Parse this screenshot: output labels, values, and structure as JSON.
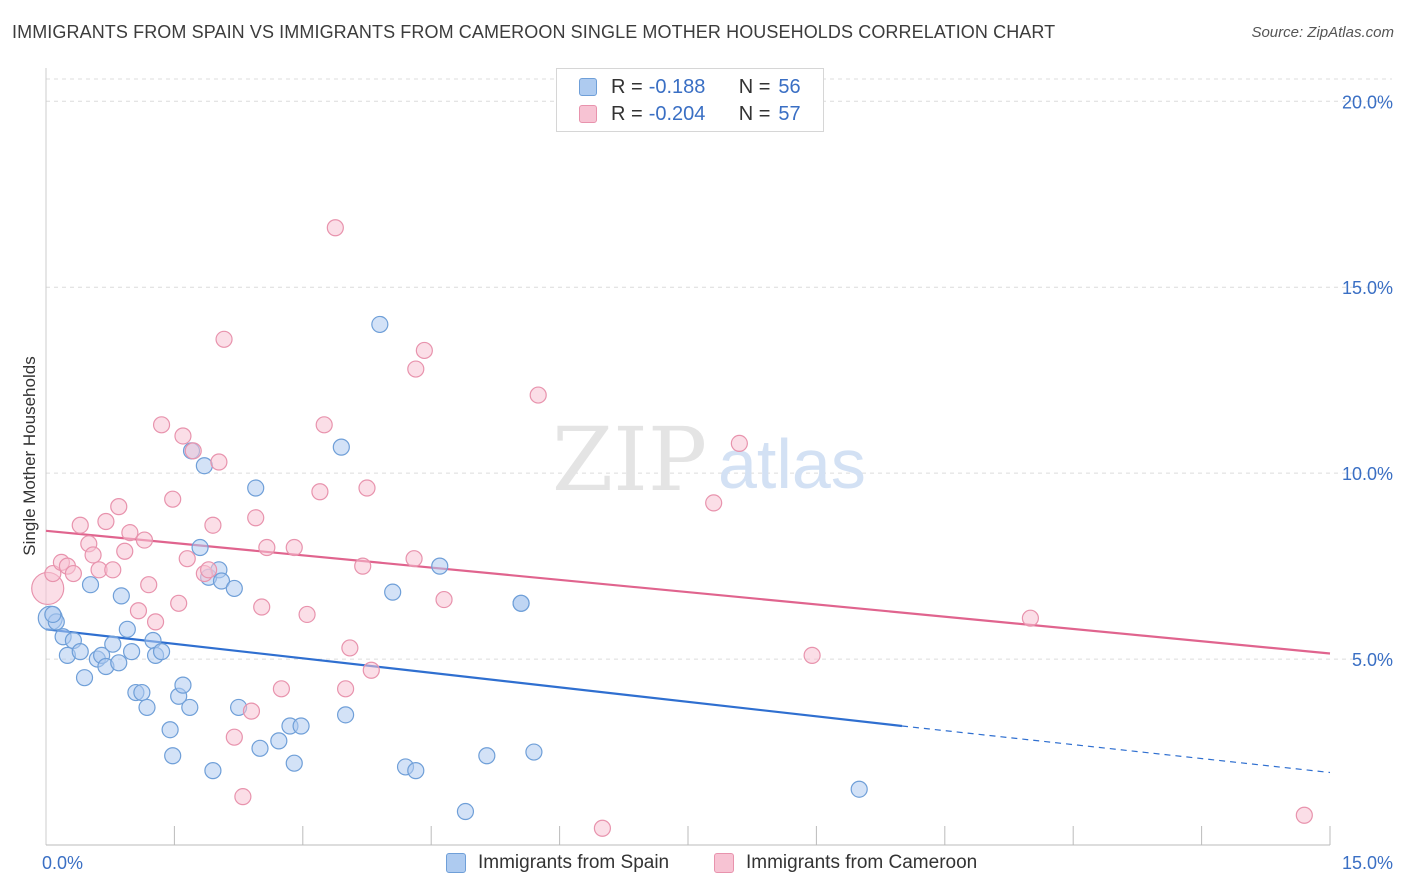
{
  "title": "IMMIGRANTS FROM SPAIN VS IMMIGRANTS FROM CAMEROON SINGLE MOTHER HOUSEHOLDS CORRELATION CHART",
  "source": "Source: ZipAtlas.com",
  "legend": {
    "r_label": "R =",
    "n_label": "N =",
    "rows": [
      {
        "r": "-0.188",
        "n": "56",
        "color": "#aecbf0",
        "border": "#6f9fd8"
      },
      {
        "r": "-0.204",
        "n": "57",
        "color": "#f7c3d3",
        "border": "#e893ad"
      }
    ]
  },
  "chart_data": {
    "type": "scatter",
    "ylabel": "Single Mother Households",
    "x_tick_labels": [
      "0.0%",
      "15.0%"
    ],
    "y_tick_labels": [
      "5.0%",
      "10.0%",
      "15.0%",
      "20.0%"
    ],
    "xlim": [
      0,
      15
    ],
    "ylim": [
      0,
      20.6
    ],
    "grid": true,
    "watermark": {
      "part1": "ZIP",
      "part2": "atlas"
    },
    "series": [
      {
        "name": "Immigrants from Spain",
        "color": "#aecbf0",
        "stroke": "#6f9fd8",
        "line_color": "#2f6fd0",
        "trend": {
          "x0": 0.0,
          "y0": 5.8,
          "x1": 10.0,
          "y1": 3.2,
          "x_dash_end": 15.0,
          "y_dash_end": 1.95
        },
        "points": [
          [
            0.05,
            6.1
          ],
          [
            0.12,
            6.0
          ],
          [
            0.2,
            5.6
          ],
          [
            0.25,
            5.1
          ],
          [
            0.32,
            5.5
          ],
          [
            0.4,
            5.2
          ],
          [
            0.45,
            4.5
          ],
          [
            0.52,
            7.0
          ],
          [
            0.6,
            5.0
          ],
          [
            0.65,
            5.1
          ],
          [
            0.7,
            4.8
          ],
          [
            0.78,
            5.4
          ],
          [
            0.85,
            4.9
          ],
          [
            0.88,
            6.7
          ],
          [
            0.95,
            5.8
          ],
          [
            1.0,
            5.2
          ],
          [
            1.05,
            4.1
          ],
          [
            1.12,
            4.1
          ],
          [
            1.18,
            3.7
          ],
          [
            1.25,
            5.5
          ],
          [
            1.28,
            5.1
          ],
          [
            1.35,
            5.2
          ],
          [
            1.45,
            3.1
          ],
          [
            1.48,
            2.4
          ],
          [
            1.55,
            4.0
          ],
          [
            1.6,
            4.3
          ],
          [
            1.68,
            3.7
          ],
          [
            1.7,
            10.6
          ],
          [
            1.8,
            8.0
          ],
          [
            1.85,
            10.2
          ],
          [
            1.9,
            7.2
          ],
          [
            1.95,
            2.0
          ],
          [
            2.02,
            7.4
          ],
          [
            2.05,
            7.1
          ],
          [
            2.2,
            6.9
          ],
          [
            2.25,
            3.7
          ],
          [
            2.45,
            9.6
          ],
          [
            2.5,
            2.6
          ],
          [
            2.72,
            2.8
          ],
          [
            2.85,
            3.2
          ],
          [
            2.9,
            2.2
          ],
          [
            2.98,
            3.2
          ],
          [
            3.45,
            10.7
          ],
          [
            3.5,
            3.5
          ],
          [
            3.9,
            14.0
          ],
          [
            4.05,
            6.8
          ],
          [
            4.2,
            2.1
          ],
          [
            4.32,
            2.0
          ],
          [
            4.6,
            7.5
          ],
          [
            4.9,
            0.9
          ],
          [
            5.15,
            2.4
          ],
          [
            5.55,
            6.5
          ],
          [
            5.55,
            6.5
          ],
          [
            5.7,
            2.5
          ],
          [
            9.5,
            1.5
          ],
          [
            0.08,
            6.2
          ]
        ]
      },
      {
        "name": "Immigrants from Cameroon",
        "color": "#f7c3d3",
        "stroke": "#e893ad",
        "line_color": "#e0648e",
        "trend": {
          "x0": 0.0,
          "y0": 8.45,
          "x1": 15.0,
          "y1": 5.15
        },
        "points": [
          [
            0.02,
            6.9
          ],
          [
            0.08,
            7.3
          ],
          [
            0.18,
            7.6
          ],
          [
            0.25,
            7.5
          ],
          [
            0.32,
            7.3
          ],
          [
            0.4,
            8.6
          ],
          [
            0.5,
            8.1
          ],
          [
            0.55,
            7.8
          ],
          [
            0.62,
            7.4
          ],
          [
            0.7,
            8.7
          ],
          [
            0.78,
            7.4
          ],
          [
            0.85,
            9.1
          ],
          [
            0.92,
            7.9
          ],
          [
            0.98,
            8.4
          ],
          [
            1.08,
            6.3
          ],
          [
            1.15,
            8.2
          ],
          [
            1.2,
            7.0
          ],
          [
            1.28,
            6.0
          ],
          [
            1.35,
            11.3
          ],
          [
            1.48,
            9.3
          ],
          [
            1.55,
            6.5
          ],
          [
            1.6,
            11.0
          ],
          [
            1.65,
            7.7
          ],
          [
            1.72,
            10.6
          ],
          [
            1.85,
            7.3
          ],
          [
            1.9,
            7.4
          ],
          [
            1.95,
            8.6
          ],
          [
            2.02,
            10.3
          ],
          [
            2.08,
            13.6
          ],
          [
            2.2,
            2.9
          ],
          [
            2.3,
            1.3
          ],
          [
            2.4,
            3.6
          ],
          [
            2.45,
            8.8
          ],
          [
            2.52,
            6.4
          ],
          [
            2.58,
            8.0
          ],
          [
            2.75,
            4.2
          ],
          [
            2.9,
            8.0
          ],
          [
            3.05,
            6.2
          ],
          [
            3.2,
            9.5
          ],
          [
            3.25,
            11.3
          ],
          [
            3.38,
            16.6
          ],
          [
            3.5,
            4.2
          ],
          [
            3.55,
            5.3
          ],
          [
            3.7,
            7.5
          ],
          [
            3.75,
            9.6
          ],
          [
            3.8,
            4.7
          ],
          [
            4.3,
            7.7
          ],
          [
            4.32,
            12.8
          ],
          [
            4.42,
            13.3
          ],
          [
            4.65,
            6.6
          ],
          [
            5.75,
            12.1
          ],
          [
            7.8,
            9.2
          ],
          [
            8.1,
            10.8
          ],
          [
            8.95,
            5.1
          ],
          [
            11.5,
            6.1
          ],
          [
            14.7,
            0.8
          ],
          [
            6.5,
            0.45
          ]
        ]
      }
    ]
  }
}
